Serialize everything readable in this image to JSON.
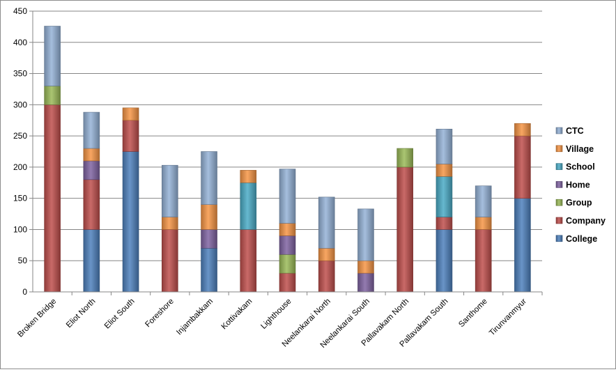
{
  "chart_data": {
    "type": "bar",
    "stacked": true,
    "title": "",
    "xlabel": "",
    "ylabel": "",
    "ylim": [
      0,
      450
    ],
    "yticks": [
      0,
      50,
      100,
      150,
      200,
      250,
      300,
      350,
      400,
      450
    ],
    "grid": true,
    "legend_position": "right",
    "categories": [
      "Broken Bridge",
      "Eliot North",
      "Eliot South",
      "Foreshore",
      "Injambakkam",
      "Kottivakam",
      "Lighthouse",
      "Neelankarai North",
      "Neelankarai South",
      "Pallavakam North",
      "Pallavakam South",
      "Santhome",
      "Tirunvanmyur"
    ],
    "series": [
      {
        "name": "College",
        "color": "#4f81bd",
        "values": [
          0,
          100,
          225,
          0,
          70,
          0,
          0,
          0,
          0,
          0,
          100,
          0,
          150
        ]
      },
      {
        "name": "Company",
        "color": "#c0504d",
        "values": [
          300,
          80,
          50,
          100,
          0,
          100,
          30,
          50,
          0,
          200,
          20,
          100,
          100
        ]
      },
      {
        "name": "Group",
        "color": "#9bbb59",
        "values": [
          30,
          0,
          0,
          0,
          0,
          0,
          30,
          0,
          0,
          30,
          0,
          0,
          0
        ]
      },
      {
        "name": "Home",
        "color": "#8064a2",
        "values": [
          0,
          30,
          0,
          0,
          30,
          0,
          30,
          0,
          30,
          0,
          0,
          0,
          0
        ]
      },
      {
        "name": "School",
        "color": "#4bacc6",
        "values": [
          0,
          0,
          0,
          0,
          0,
          75,
          0,
          0,
          0,
          0,
          65,
          0,
          0
        ]
      },
      {
        "name": "Village",
        "color": "#f79646",
        "values": [
          0,
          20,
          20,
          20,
          40,
          20,
          20,
          20,
          20,
          0,
          20,
          20,
          20
        ]
      },
      {
        "name": "CTC",
        "color": "#95b3d7",
        "values": [
          96,
          58,
          0,
          83,
          85,
          0,
          87,
          82,
          83,
          0,
          56,
          50,
          0
        ]
      }
    ],
    "legend_order": [
      "CTC",
      "Village",
      "School",
      "Home",
      "Group",
      "Company",
      "College"
    ]
  }
}
